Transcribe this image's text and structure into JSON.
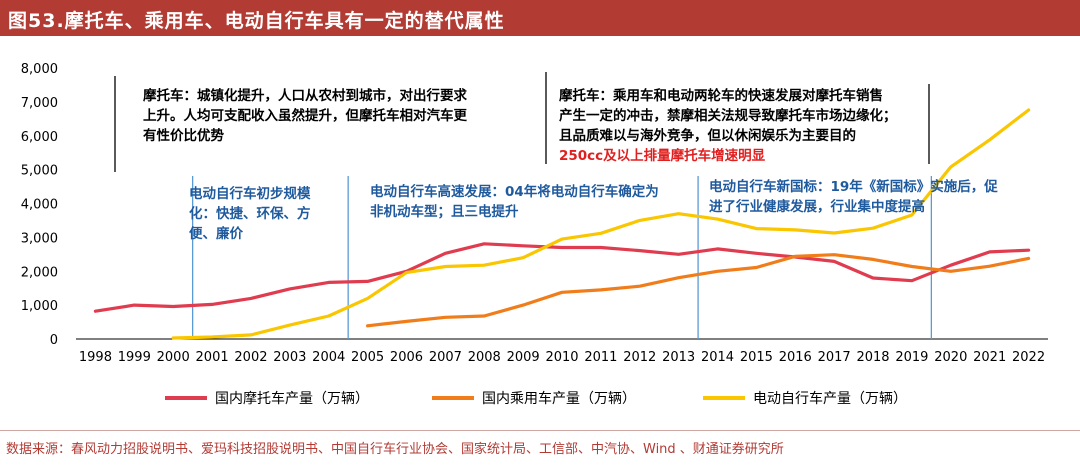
{
  "header": {
    "title": "图53.摩托车、乘用车、电动自行车具有一定的替代属性"
  },
  "source": "数据来源：春风动力招股说明书、爱玛科技招股说明书、中国自行车行业协会、国家统计局、工信部、中汽协、Wind 、财通证券研究所",
  "colors": {
    "motorcycle": "#e03c4f",
    "passenger_car": "#f07d1a",
    "ebike": "#f9c600",
    "header": "#b23b34",
    "divider": "#5b9bd5",
    "annotation_blue": "#1f5a9e",
    "annotation_red": "#e02020"
  },
  "chart_data": {
    "type": "line",
    "categories": [
      "1998",
      "1999",
      "2000",
      "2001",
      "2002",
      "2003",
      "2004",
      "2005",
      "2006",
      "2007",
      "2008",
      "2009",
      "2010",
      "2011",
      "2012",
      "2013",
      "2014",
      "2015",
      "2016",
      "2017",
      "2018",
      "2019",
      "2020",
      "2021",
      "2022"
    ],
    "ylim": [
      0,
      8000
    ],
    "yticks": [
      "0",
      "1,000",
      "2,000",
      "3,000",
      "4,000",
      "5,000",
      "6,000",
      "7,000",
      "8,000"
    ],
    "series": [
      {
        "name": "国内摩托车产量（万辆）",
        "color": "#e03c4f",
        "values": [
          820,
          1000,
          960,
          1020,
          1200,
          1480,
          1670,
          1700,
          2000,
          2530,
          2810,
          2750,
          2700,
          2700,
          2610,
          2500,
          2660,
          2530,
          2420,
          2290,
          1800,
          1720,
          2180,
          2570,
          2620
        ]
      },
      {
        "name": "国内乘用车产量（万辆）",
        "color": "#f07d1a",
        "values": [
          null,
          null,
          null,
          null,
          null,
          null,
          null,
          390,
          520,
          640,
          680,
          1000,
          1380,
          1450,
          1560,
          1810,
          2000,
          2110,
          2440,
          2490,
          2350,
          2140,
          2000,
          2150,
          2380
        ]
      },
      {
        "name": "电动自行车产量（万辆）",
        "color": "#f9c600",
        "values": [
          null,
          null,
          30,
          60,
          120,
          410,
          680,
          1200,
          1960,
          2140,
          2180,
          2400,
          2950,
          3120,
          3500,
          3700,
          3540,
          3260,
          3220,
          3130,
          3270,
          3660,
          5080,
          5880,
          6760
        ]
      }
    ],
    "dividers_after_year": [
      "2000",
      "2004",
      "2013",
      "2019"
    ],
    "annotations": [
      {
        "text": "摩托车：城镇化提升，人口从农村到城市，对出行要求\n上升。人均可支配收入虽然提升，但摩托车相对汽车更\n有性价比优势",
        "color": "#000000"
      },
      {
        "text": "摩托车：乘用车和电动两轮车的快速发展对摩托车销售\n产生一定的冲击，禁摩相关法规导致摩托车市场边缘化；\n且品质难以与海外竞争，但以休闲娱乐为主要目的",
        "highlight": "250cc及以上排量摩托车增速明显",
        "color": "#000000"
      },
      {
        "text": "电动自行车初步规模\n化：快捷、环保、方\n便、廉价",
        "color": "#1f5a9e"
      },
      {
        "text": "电动自行车高速发展：04年将电动自行车确定为\n非机动车型；且三电提升",
        "color": "#1f5a9e"
      },
      {
        "text": "电动自行车新国标：19年《新国标》实施后，促\n进了行业健康发展，行业集中度提高",
        "color": "#1f5a9e"
      }
    ]
  }
}
